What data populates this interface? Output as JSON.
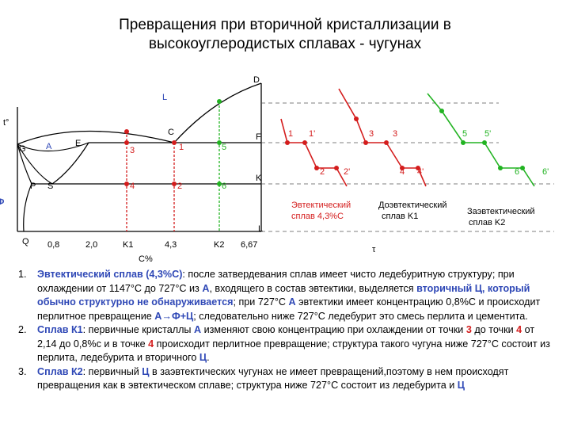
{
  "title": {
    "line1": "Превращения при вторичной кристаллизации в",
    "line2": "высокоуглеродистых сплавах - чугунах"
  },
  "diagram": {
    "axis_t": "t°",
    "axis_c": "C%",
    "axis_phi": "Ф",
    "points": {
      "D": "D",
      "L": "L",
      "C": "C",
      "E": "E",
      "F": "F",
      "G": "G",
      "A": "A",
      "P": "P",
      "S": "S",
      "K": "K",
      "Q": "Q",
      "Lbottom": "L"
    },
    "x_ticks": [
      "0,8",
      "2,0",
      "K1",
      "4,3",
      "K2",
      "6,67"
    ],
    "markers": {
      "eut_top": "1",
      "eut_bot": "2",
      "k1_top": "3",
      "k1_bot": "4",
      "k2_top": "5",
      "k2_bot": "6"
    },
    "curves": {
      "eut": {
        "label_l1": "Эвтектический",
        "label_l2": "сплав 4,3%C",
        "p1": "1",
        "p1p": "1'",
        "p2": "2",
        "p2p": "2'"
      },
      "k1": {
        "label_l1": "Доэвтектический",
        "label_l2": "сплав K1",
        "p3": "3",
        "p3p": "3",
        "p4": "4",
        "p4p": "4'"
      },
      "k2": {
        "label_l1": "Заэвтектический",
        "label_l2": "сплав K2",
        "p5": "5",
        "p5p": "5'",
        "p6": "6",
        "p6p": "6'"
      },
      "tau": "τ"
    },
    "colors": {
      "red": "#d41d1d",
      "green": "#22b322",
      "blue": "#2f48b6"
    }
  },
  "items": [
    {
      "num": "1.",
      "s1": "Эвтектический сплав (4,3%С)",
      "s2": ": после затвердевания сплав имеет чисто ледебуритную структуру; при охлаждении от 1147°С до 727°С из ",
      "s3": "А",
      "s4": ", входящего в состав эвтектики, выделяется ",
      "s5": "вторичный Ц, который обычно структурно не обнаруживается",
      "s6": "; при 727°С ",
      "s7": "А",
      "s8": " эвтектики имеет концентрацию 0,8%С и происходит перлитное превращение ",
      "s9": "А→Ф+Ц",
      "s10": "; следовательно ниже 727°С ледебурит это смесь перлита и цементита."
    },
    {
      "num": "2.",
      "s1": "Сплав К1",
      "s2": ": первичные кристаллы ",
      "s3": "А",
      "s4": " изменяют свою концентрацию при охлаждении от точки ",
      "s5": "3",
      "s6": " до точки ",
      "s7": "4",
      "s8": " от 2,14 до 0,8%с и в точке ",
      "s9": "4",
      "s10": " происходит перлитное превращение; структура такого чугуна ниже 727°С состоит из перлита, ледебурита и вторичного ",
      "s11": "Ц",
      "s12": "."
    },
    {
      "num": "3.",
      "s1": "Сплав К2",
      "s2": ": первичный ",
      "s3": "Ц",
      "s4": " в заэвтектических чугунах не имеет превращений,поэтому в нем происходят превращения как в эвтектическом сплаве; структура ниже 727°С состоит из ледебурита и ",
      "s5": "Ц"
    }
  ]
}
